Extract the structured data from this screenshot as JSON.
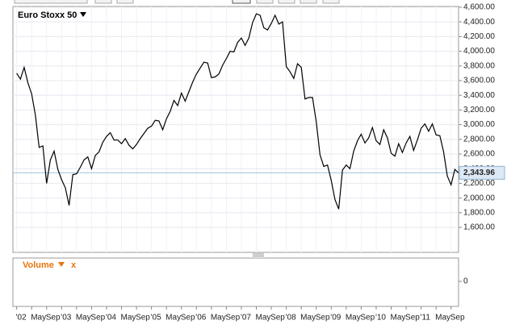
{
  "chart_data": [
    {
      "type": "line",
      "title": "Euro Stoxx 50",
      "x": [
        "2002-01",
        "2002-02",
        "2002-03",
        "2002-04",
        "2002-05",
        "2002-06",
        "2002-07",
        "2002-08",
        "2002-09",
        "2002-10",
        "2002-11",
        "2002-12",
        "2003-01",
        "2003-02",
        "2003-03",
        "2003-04",
        "2003-05",
        "2003-06",
        "2003-07",
        "2003-08",
        "2003-09",
        "2003-10",
        "2003-11",
        "2003-12",
        "2004-01",
        "2004-02",
        "2004-03",
        "2004-04",
        "2004-05",
        "2004-06",
        "2004-07",
        "2004-08",
        "2004-09",
        "2004-10",
        "2004-11",
        "2004-12",
        "2005-01",
        "2005-02",
        "2005-03",
        "2005-04",
        "2005-05",
        "2005-06",
        "2005-07",
        "2005-08",
        "2005-09",
        "2005-10",
        "2005-11",
        "2005-12",
        "2006-01",
        "2006-02",
        "2006-03",
        "2006-04",
        "2006-05",
        "2006-06",
        "2006-07",
        "2006-08",
        "2006-09",
        "2006-10",
        "2006-11",
        "2006-12",
        "2007-01",
        "2007-02",
        "2007-03",
        "2007-04",
        "2007-05",
        "2007-06",
        "2007-07",
        "2007-08",
        "2007-09",
        "2007-10",
        "2007-11",
        "2007-12",
        "2008-01",
        "2008-02",
        "2008-03",
        "2008-04",
        "2008-05",
        "2008-06",
        "2008-07",
        "2008-08",
        "2008-09",
        "2008-10",
        "2008-11",
        "2008-12",
        "2009-01",
        "2009-02",
        "2009-03",
        "2009-04",
        "2009-05",
        "2009-06",
        "2009-07",
        "2009-08",
        "2009-09",
        "2009-10",
        "2009-11",
        "2009-12",
        "2010-01",
        "2010-02",
        "2010-03",
        "2010-04",
        "2010-05",
        "2010-06",
        "2010-07",
        "2010-08",
        "2010-09",
        "2010-10",
        "2010-11",
        "2010-12",
        "2011-01",
        "2011-02",
        "2011-03",
        "2011-04",
        "2011-05",
        "2011-06",
        "2011-07",
        "2011-08",
        "2011-09",
        "2011-10",
        "2011-11"
      ],
      "series": [
        {
          "name": "Euro Stoxx 50",
          "color": "#000000",
          "values": [
            3700,
            3620,
            3780,
            3570,
            3420,
            3130,
            2690,
            2710,
            2200,
            2520,
            2640,
            2390,
            2250,
            2140,
            1900,
            2320,
            2330,
            2420,
            2520,
            2560,
            2400,
            2580,
            2630,
            2760,
            2840,
            2890,
            2790,
            2790,
            2740,
            2810,
            2720,
            2670,
            2730,
            2810,
            2880,
            2950,
            2980,
            3060,
            3050,
            2930,
            3080,
            3180,
            3330,
            3260,
            3430,
            3320,
            3450,
            3580,
            3690,
            3770,
            3850,
            3840,
            3640,
            3650,
            3690,
            3810,
            3900,
            4000,
            3990,
            4120,
            4180,
            4080,
            4180,
            4390,
            4510,
            4490,
            4320,
            4290,
            4380,
            4490,
            4370,
            4400,
            3790,
            3720,
            3630,
            3830,
            3780,
            3350,
            3370,
            3370,
            3040,
            2590,
            2430,
            2450,
            2240,
            1980,
            1850,
            2380,
            2450,
            2400,
            2640,
            2780,
            2870,
            2750,
            2820,
            2960,
            2780,
            2730,
            2930,
            2820,
            2610,
            2570,
            2740,
            2620,
            2750,
            2840,
            2650,
            2790,
            2950,
            3010,
            2910,
            3010,
            2860,
            2850,
            2630,
            2300,
            2180,
            2390,
            2343.96
          ]
        }
      ],
      "last_price": {
        "value": 2343.96,
        "label": "2,343.96"
      },
      "xlim": [
        "2001-12",
        "2011-11"
      ],
      "xticks": [
        {
          "value": "2002-01",
          "label": "'02"
        },
        {
          "value": "2002-05",
          "label": "May"
        },
        {
          "value": "2002-09",
          "label": "Sep"
        },
        {
          "value": "2003-01",
          "label": "'03"
        },
        {
          "value": "2003-05",
          "label": "May"
        },
        {
          "value": "2003-09",
          "label": "Sep"
        },
        {
          "value": "2004-01",
          "label": "'04"
        },
        {
          "value": "2004-05",
          "label": "May"
        },
        {
          "value": "2004-09",
          "label": "Sep"
        },
        {
          "value": "2005-01",
          "label": "'05"
        },
        {
          "value": "2005-05",
          "label": "May"
        },
        {
          "value": "2005-09",
          "label": "Sep"
        },
        {
          "value": "2006-01",
          "label": "'06"
        },
        {
          "value": "2006-05",
          "label": "May"
        },
        {
          "value": "2006-09",
          "label": "Sep"
        },
        {
          "value": "2007-01",
          "label": "'07"
        },
        {
          "value": "2007-05",
          "label": "May"
        },
        {
          "value": "2007-09",
          "label": "Sep"
        },
        {
          "value": "2008-01",
          "label": "'08"
        },
        {
          "value": "2008-05",
          "label": "May"
        },
        {
          "value": "2008-09",
          "label": "Sep"
        },
        {
          "value": "2009-01",
          "label": "'09"
        },
        {
          "value": "2009-05",
          "label": "May"
        },
        {
          "value": "2009-09",
          "label": "Sep"
        },
        {
          "value": "2010-01",
          "label": "'10"
        },
        {
          "value": "2010-05",
          "label": "May"
        },
        {
          "value": "2010-09",
          "label": "Sep"
        },
        {
          "value": "2011-01",
          "label": "'11"
        },
        {
          "value": "2011-05",
          "label": "May"
        },
        {
          "value": "2011-09",
          "label": "Sep"
        }
      ],
      "ylim": [
        1260,
        4610
      ],
      "yticks": [
        {
          "value": 1600,
          "label": "1,600.00"
        },
        {
          "value": 1800,
          "label": "1,800.00"
        },
        {
          "value": 2000,
          "label": "2,000.00"
        },
        {
          "value": 2200,
          "label": "2,200.00"
        },
        {
          "value": 2400,
          "label": "2,400.00"
        },
        {
          "value": 2600,
          "label": "2,600.00"
        },
        {
          "value": 2800,
          "label": "2,800.00"
        },
        {
          "value": 3000,
          "label": "3,000.00"
        },
        {
          "value": 3200,
          "label": "3,200.00"
        },
        {
          "value": 3400,
          "label": "3,400.00"
        },
        {
          "value": 3600,
          "label": "3,600.00"
        },
        {
          "value": 3800,
          "label": "3,800.00"
        },
        {
          "value": 4000,
          "label": "4,000.00"
        },
        {
          "value": 4200,
          "label": "4,200.00"
        },
        {
          "value": 4400,
          "label": "4,400.00"
        },
        {
          "value": 4600,
          "label": "4,600.00"
        }
      ],
      "grid": true
    },
    {
      "type": "volume",
      "title": "Volume",
      "close_label": "x",
      "yticks": [
        0
      ]
    }
  ]
}
